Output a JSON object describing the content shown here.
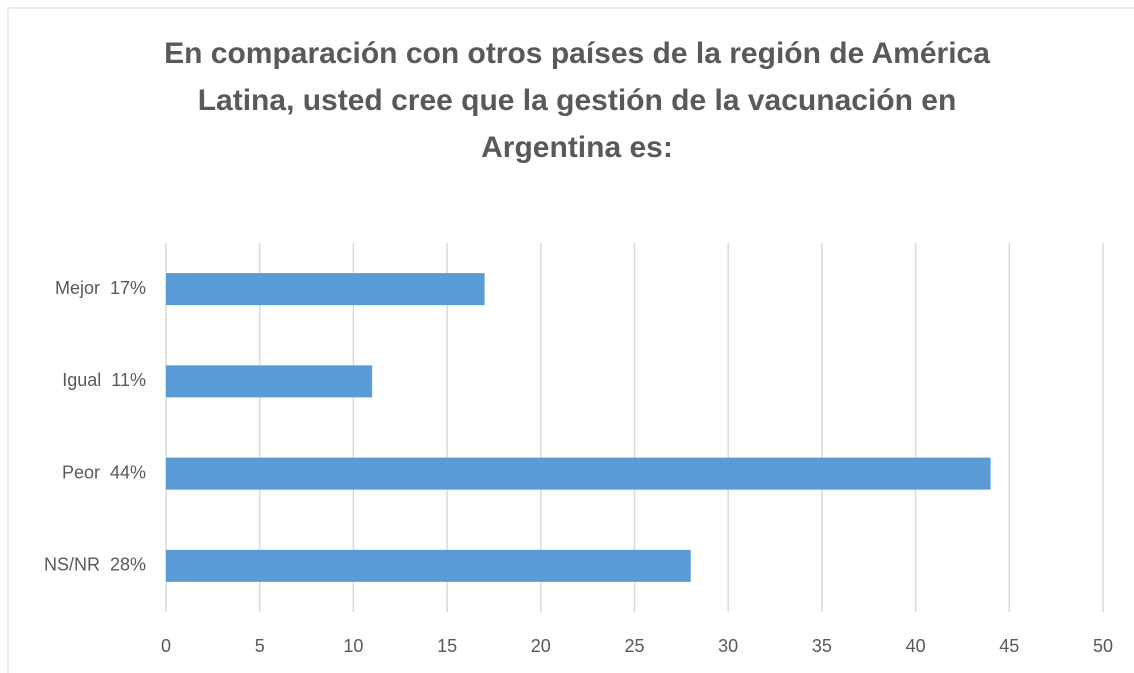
{
  "chart_data": {
    "type": "bar",
    "orientation": "horizontal",
    "title": "En comparación con otros países de la región de América Latina, usted cree que la gestión de la vacunación en Argentina es:",
    "categories": [
      "Mejor  17%",
      "Igual  11%",
      "Peor  44%",
      "NS/NR  28%"
    ],
    "values": [
      17,
      11,
      44,
      28
    ],
    "color": "#5b9bd5",
    "xlim": [
      0,
      50
    ],
    "xticks": [
      0,
      5,
      10,
      15,
      20,
      25,
      30,
      35,
      40,
      45,
      50
    ],
    "grid": true
  }
}
